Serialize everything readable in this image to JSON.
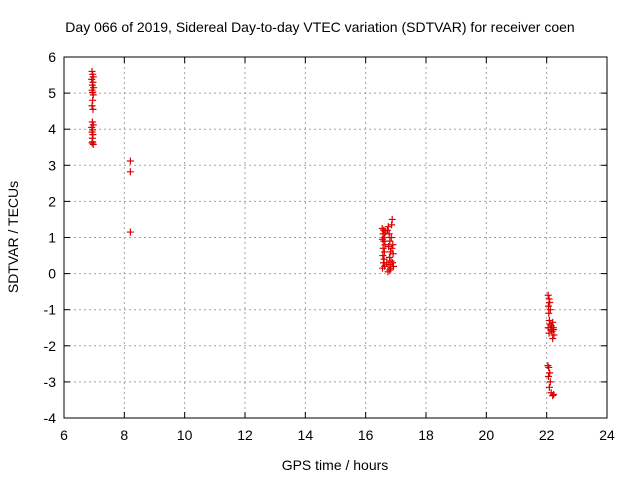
{
  "chart_data": {
    "type": "scatter",
    "title": "Day 066 of 2019, Sidereal Day-to-day VTEC variation (SDTVAR) for receiver coen",
    "xlabel": "GPS time / hours",
    "ylabel": "SDTVAR / TECUs",
    "xlim": [
      6,
      24
    ],
    "ylim": [
      -4,
      6
    ],
    "xticks": [
      6,
      8,
      10,
      12,
      14,
      16,
      18,
      20,
      22,
      24
    ],
    "yticks": [
      -4,
      -3,
      -2,
      -1,
      0,
      1,
      2,
      3,
      4,
      5,
      6
    ],
    "grid": true,
    "marker": "+",
    "series": [
      {
        "name": "SDTVAR",
        "color": "#dd0000",
        "points": [
          [
            6.93,
            5.6
          ],
          [
            6.95,
            5.52
          ],
          [
            6.97,
            5.45
          ],
          [
            6.92,
            5.38
          ],
          [
            6.96,
            5.3
          ],
          [
            6.94,
            5.22
          ],
          [
            6.98,
            5.15
          ],
          [
            6.93,
            5.08
          ],
          [
            6.95,
            5.02
          ],
          [
            6.97,
            4.95
          ],
          [
            6.95,
            4.8
          ],
          [
            6.93,
            4.65
          ],
          [
            6.96,
            4.55
          ],
          [
            6.94,
            4.2
          ],
          [
            6.97,
            4.12
          ],
          [
            6.92,
            4.05
          ],
          [
            6.95,
            3.98
          ],
          [
            6.93,
            3.92
          ],
          [
            6.96,
            3.85
          ],
          [
            6.94,
            3.75
          ],
          [
            6.95,
            3.65
          ],
          [
            6.97,
            3.58
          ],
          [
            6.93,
            3.62
          ],
          [
            8.2,
            3.12
          ],
          [
            8.2,
            2.82
          ],
          [
            8.2,
            1.15
          ],
          [
            16.55,
            1.25
          ],
          [
            16.6,
            1.2
          ],
          [
            16.65,
            1.15
          ],
          [
            16.58,
            1.1
          ],
          [
            16.62,
            1.0
          ],
          [
            16.56,
            0.95
          ],
          [
            16.6,
            0.9
          ],
          [
            16.64,
            0.8
          ],
          [
            16.58,
            0.7
          ],
          [
            16.62,
            0.6
          ],
          [
            16.57,
            0.5
          ],
          [
            16.61,
            0.4
          ],
          [
            16.59,
            0.3
          ],
          [
            16.63,
            0.2
          ],
          [
            16.56,
            0.15
          ],
          [
            16.7,
            0.3
          ],
          [
            16.72,
            1.2
          ],
          [
            16.75,
            1.3
          ],
          [
            16.78,
            1.1
          ],
          [
            16.8,
            0.9
          ],
          [
            16.76,
            0.75
          ],
          [
            16.82,
            0.6
          ],
          [
            16.79,
            0.45
          ],
          [
            16.84,
            0.35
          ],
          [
            16.77,
            0.25
          ],
          [
            16.83,
            0.15
          ],
          [
            16.8,
            0.1
          ],
          [
            16.85,
            1.0
          ],
          [
            16.88,
            1.5
          ],
          [
            16.86,
            1.35
          ],
          [
            16.9,
            0.8
          ],
          [
            16.87,
            0.7
          ],
          [
            16.91,
            0.55
          ],
          [
            16.89,
            0.3
          ],
          [
            16.92,
            0.2
          ],
          [
            16.74,
            0.05
          ],
          [
            22.05,
            -0.6
          ],
          [
            22.08,
            -0.7
          ],
          [
            22.1,
            -0.8
          ],
          [
            22.06,
            -0.9
          ],
          [
            22.12,
            -1.0
          ],
          [
            22.07,
            -1.1
          ],
          [
            22.09,
            -1.3
          ],
          [
            22.11,
            -1.4
          ],
          [
            22.05,
            -1.5
          ],
          [
            22.14,
            -1.55
          ],
          [
            22.08,
            -1.65
          ],
          [
            22.16,
            -1.45
          ],
          [
            22.2,
            -1.35
          ],
          [
            22.22,
            -1.5
          ],
          [
            22.18,
            -1.6
          ],
          [
            22.24,
            -1.7
          ],
          [
            22.2,
            -1.8
          ],
          [
            22.23,
            -1.55
          ],
          [
            22.04,
            -2.55
          ],
          [
            22.07,
            -2.6
          ],
          [
            22.1,
            -2.75
          ],
          [
            22.06,
            -2.85
          ],
          [
            22.12,
            -3.0
          ],
          [
            22.09,
            -3.15
          ],
          [
            22.15,
            -3.3
          ],
          [
            22.2,
            -3.38
          ],
          [
            22.23,
            -3.35
          ]
        ]
      }
    ]
  }
}
